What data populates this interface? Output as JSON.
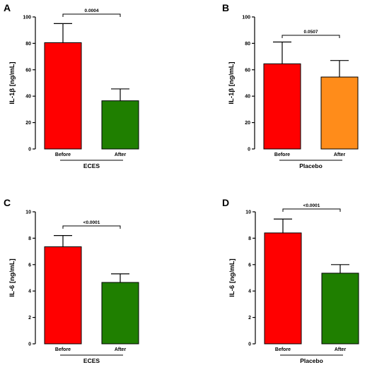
{
  "chart_data": [
    {
      "type": "bar",
      "panel": "A",
      "categories": [
        "Before",
        "After"
      ],
      "values": [
        80.5,
        36.5
      ],
      "errors": [
        14.5,
        9
      ],
      "colors": [
        "#ff0000",
        "#1f7f00"
      ],
      "ylabel": "IL-1β [ng/mL]",
      "ylim": [
        0,
        100
      ],
      "yticks": [
        "0",
        "20",
        "40",
        "60",
        "80",
        "100"
      ],
      "group_label": "ECES",
      "p_value": "0.0004"
    },
    {
      "type": "bar",
      "panel": "B",
      "categories": [
        "Before",
        "After"
      ],
      "values": [
        64.5,
        54.5
      ],
      "errors": [
        16.5,
        12.5
      ],
      "colors": [
        "#ff0000",
        "#ff8c1a"
      ],
      "ylabel": "IL-1β [ng/mL]",
      "ylim": [
        0,
        100
      ],
      "yticks": [
        "0",
        "20",
        "40",
        "60",
        "80",
        "100"
      ],
      "group_label": "Placebo",
      "p_value": "0.0507"
    },
    {
      "type": "bar",
      "panel": "C",
      "categories": [
        "Before",
        "After"
      ],
      "values": [
        7.35,
        4.65
      ],
      "errors": [
        0.85,
        0.65
      ],
      "colors": [
        "#ff0000",
        "#1f7f00"
      ],
      "ylabel": "IL-6 [ng/mL]",
      "ylim": [
        0,
        10
      ],
      "yticks": [
        "0",
        "2",
        "4",
        "6",
        "8",
        "10"
      ],
      "group_label": "ECES",
      "p_value": "<0.0001"
    },
    {
      "type": "bar",
      "panel": "D",
      "categories": [
        "Before",
        "After"
      ],
      "values": [
        8.4,
        5.35
      ],
      "errors": [
        1.05,
        0.65
      ],
      "colors": [
        "#ff0000",
        "#1f7f00"
      ],
      "ylabel": "IL-6 [ng/mL]",
      "ylim": [
        0,
        10
      ],
      "yticks": [
        "0",
        "2",
        "4",
        "6",
        "8",
        "10"
      ],
      "group_label": "Placebo",
      "p_value": "<0.0001"
    }
  ]
}
